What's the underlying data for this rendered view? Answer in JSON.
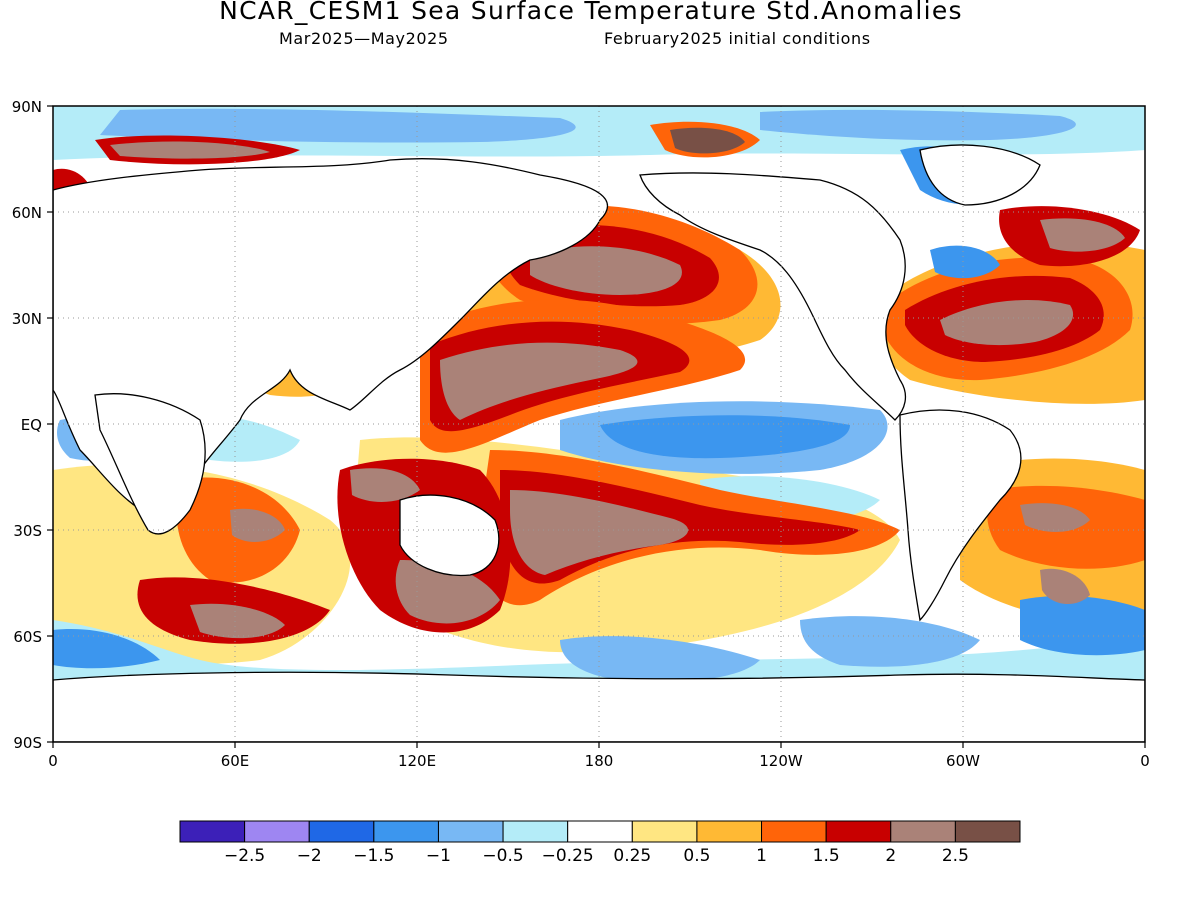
{
  "title": "NCAR_CESM1 Sea Surface Temperature Std.Anomalies",
  "subtitle_left": "Mar2025—May2025",
  "subtitle_right": "February2025 initial conditions",
  "lat_labels": [
    "90N",
    "60N",
    "30N",
    "EQ",
    "30S",
    "60S",
    "90S"
  ],
  "lon_labels": [
    "0",
    "60E",
    "120E",
    "180",
    "120W",
    "60W",
    "0"
  ],
  "colorbar": {
    "colors": [
      "#3c20b8",
      "#9e86f2",
      "#1f68e6",
      "#3c96ee",
      "#78b8f4",
      "#b4ecf8",
      "#ffffff",
      "#ffe682",
      "#ffb934",
      "#ff6409",
      "#c80000",
      "#aa8278",
      "#785046"
    ],
    "labels": [
      "−2.5",
      "−2",
      "−1.5",
      "−1",
      "−0.5",
      "−0.25",
      "0.25",
      "0.5",
      "1",
      "1.5",
      "2",
      "2.5"
    ]
  }
}
